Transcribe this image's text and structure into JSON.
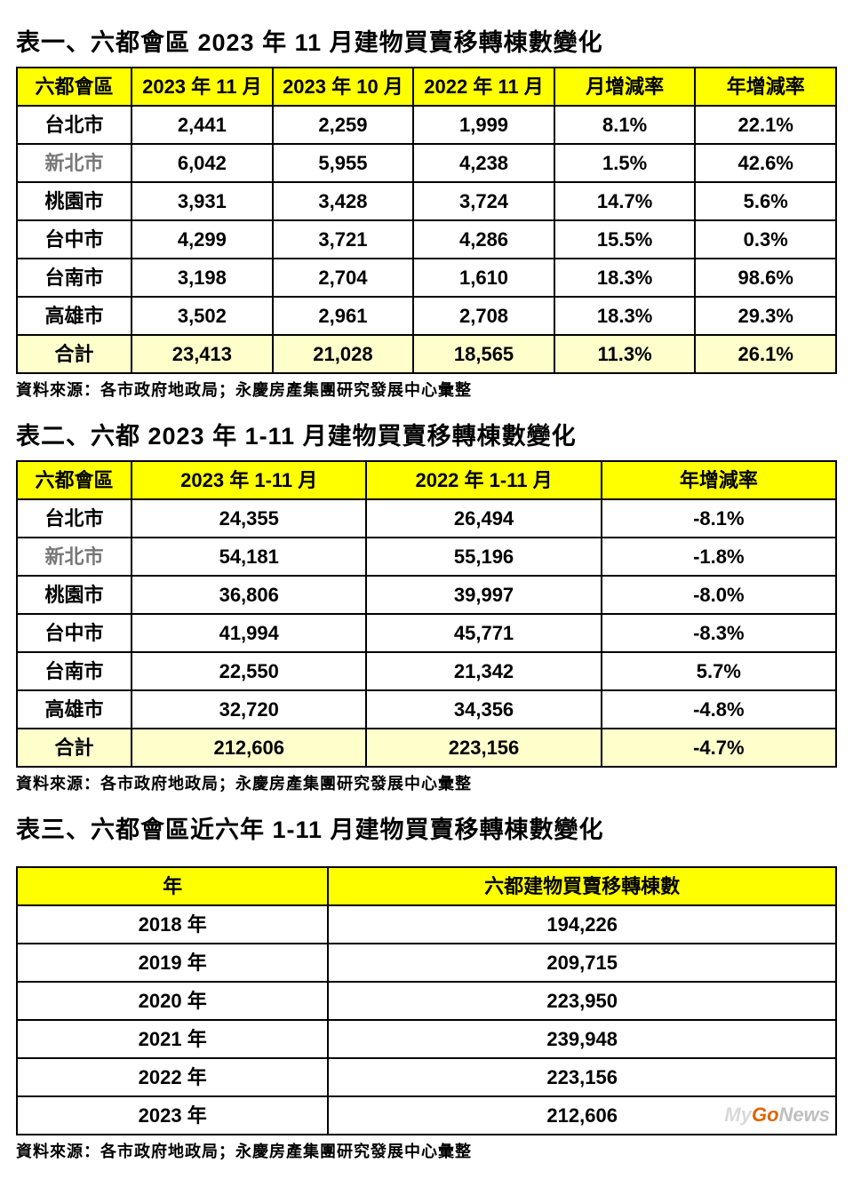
{
  "colors": {
    "header_bg": "#ffff00",
    "total_bg": "#ffffcc",
    "border": "#000000",
    "text": "#000000",
    "gray_text": "#777777"
  },
  "source_text": "資料來源：各市政府地政局；永慶房產集團研究發展中心彙整",
  "table1": {
    "title": "表一、六都會區 2023 年 11 月建物買賣移轉棟數變化",
    "columns": [
      "六都會區",
      "2023 年 11 月",
      "2023 年 10 月",
      "2022 年 11 月",
      "月增減率",
      "年增減率"
    ],
    "rows": [
      {
        "label": "台北市",
        "v": [
          "2,441",
          "2,259",
          "1,999",
          "8.1%",
          "22.1%"
        ]
      },
      {
        "label": "新北市",
        "gray": true,
        "v": [
          "6,042",
          "5,955",
          "4,238",
          "1.5%",
          "42.6%"
        ]
      },
      {
        "label": "桃園市",
        "v": [
          "3,931",
          "3,428",
          "3,724",
          "14.7%",
          "5.6%"
        ]
      },
      {
        "label": "台中市",
        "v": [
          "4,299",
          "3,721",
          "4,286",
          "15.5%",
          "0.3%"
        ]
      },
      {
        "label": "台南市",
        "v": [
          "3,198",
          "2,704",
          "1,610",
          "18.3%",
          "98.6%"
        ]
      },
      {
        "label": "高雄市",
        "v": [
          "3,502",
          "2,961",
          "2,708",
          "18.3%",
          "29.3%"
        ]
      }
    ],
    "total": {
      "label": "合計",
      "v": [
        "23,413",
        "21,028",
        "18,565",
        "11.3%",
        "26.1%"
      ]
    }
  },
  "table2": {
    "title": "表二、六都 2023 年 1-11 月建物買賣移轉棟數變化",
    "columns": [
      "六都會區",
      "2023 年 1-11 月",
      "2022 年 1-11 月",
      "年增減率"
    ],
    "rows": [
      {
        "label": "台北市",
        "v": [
          "24,355",
          "26,494",
          "-8.1%"
        ]
      },
      {
        "label": "新北市",
        "gray": true,
        "v": [
          "54,181",
          "55,196",
          "-1.8%"
        ]
      },
      {
        "label": "桃園市",
        "v": [
          "36,806",
          "39,997",
          "-8.0%"
        ]
      },
      {
        "label": "台中市",
        "v": [
          "41,994",
          "45,771",
          "-8.3%"
        ]
      },
      {
        "label": "台南市",
        "v": [
          "22,550",
          "21,342",
          "5.7%"
        ]
      },
      {
        "label": "高雄市",
        "v": [
          "32,720",
          "34,356",
          "-4.8%"
        ]
      }
    ],
    "total": {
      "label": "合計",
      "v": [
        "212,606",
        "223,156",
        "-4.7%"
      ]
    }
  },
  "table3": {
    "title": "表三、六都會區近六年 1-11 月建物買賣移轉棟數變化",
    "columns": [
      "年",
      "六都建物買賣移轉棟數"
    ],
    "rows": [
      {
        "label": "2018 年",
        "v": [
          "194,226"
        ]
      },
      {
        "label": "2019 年",
        "v": [
          "209,715"
        ]
      },
      {
        "label": "2020 年",
        "v": [
          "223,950"
        ]
      },
      {
        "label": "2021 年",
        "v": [
          "239,948"
        ]
      },
      {
        "label": "2022 年",
        "v": [
          "223,156"
        ]
      },
      {
        "label": "2023 年",
        "v": [
          "212,606"
        ]
      }
    ]
  },
  "watermark": {
    "my": "My",
    "go": "Go",
    "news": "News"
  }
}
